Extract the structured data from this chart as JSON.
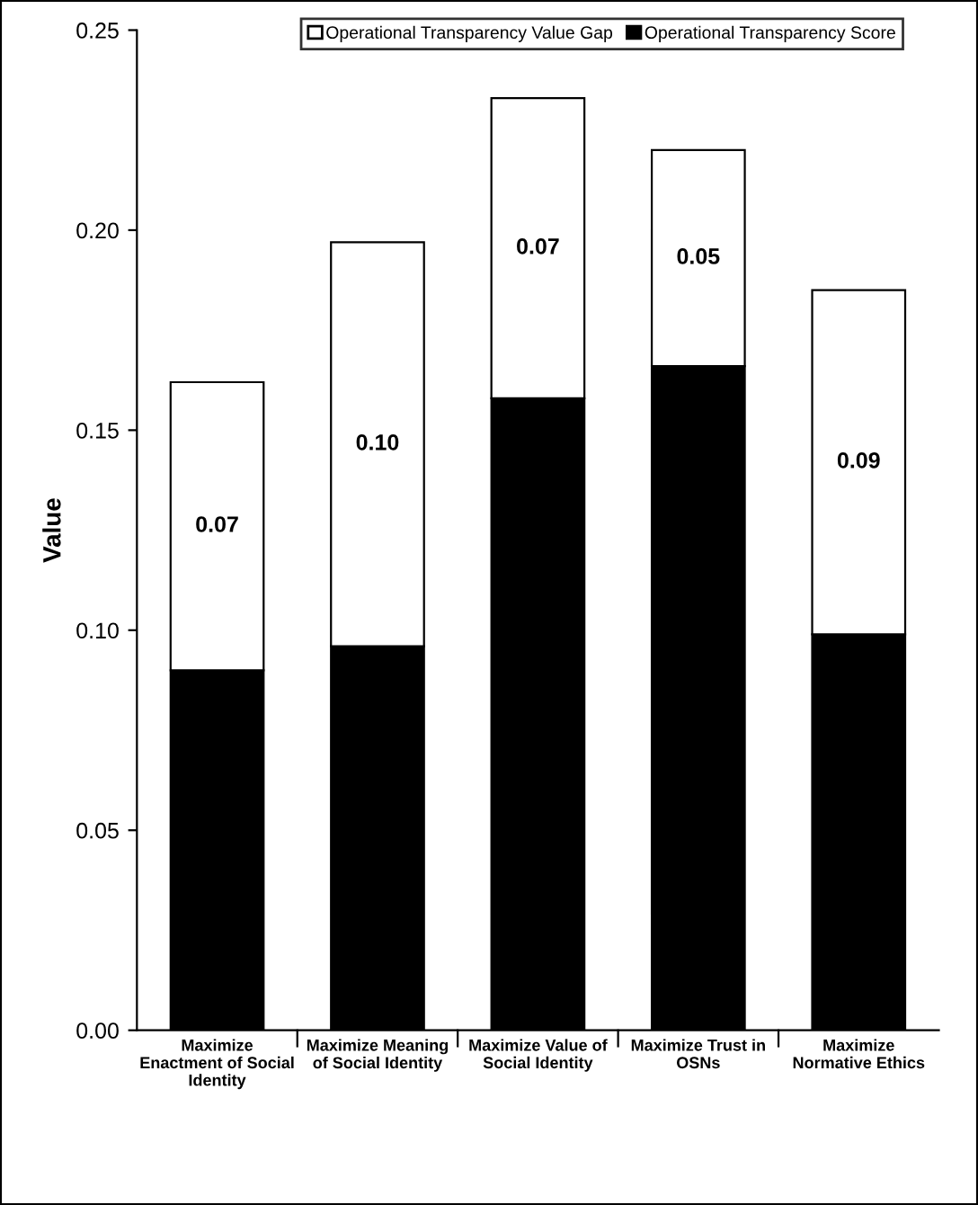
{
  "chart_data": {
    "type": "bar",
    "stacked": true,
    "ylabel": "Value",
    "categories": [
      "Maximize\nEnactment of Social\nIdentity",
      "Maximize Meaning\nof Social Identity",
      "Maximize Value of\nSocial Identity",
      "Maximize Trust in\nOSNs",
      "Maximize\nNormative Ethics"
    ],
    "series": [
      {
        "name": "Operational Transparency Score",
        "color": "#000000",
        "values": [
          0.09,
          0.096,
          0.158,
          0.166,
          0.099
        ]
      },
      {
        "name": "Operational Transparency Value Gap",
        "color": "#ffffff",
        "values": [
          0.072,
          0.101,
          0.075,
          0.054,
          0.086
        ],
        "value_labels": [
          "0.07",
          "0.10",
          "0.07",
          "0.05",
          "0.09"
        ]
      }
    ],
    "ylim": [
      0,
      0.25
    ],
    "yticks": [
      {
        "value": 0,
        "label": "0.00"
      },
      {
        "value": 0.05,
        "label": "0.05"
      },
      {
        "value": 0.1,
        "label": "0.10"
      },
      {
        "value": 0.15,
        "label": "0.15"
      },
      {
        "value": 0.2,
        "label": "0.20"
      },
      {
        "value": 0.25,
        "label": "0.25"
      }
    ],
    "legend": "top",
    "grid": false
  }
}
